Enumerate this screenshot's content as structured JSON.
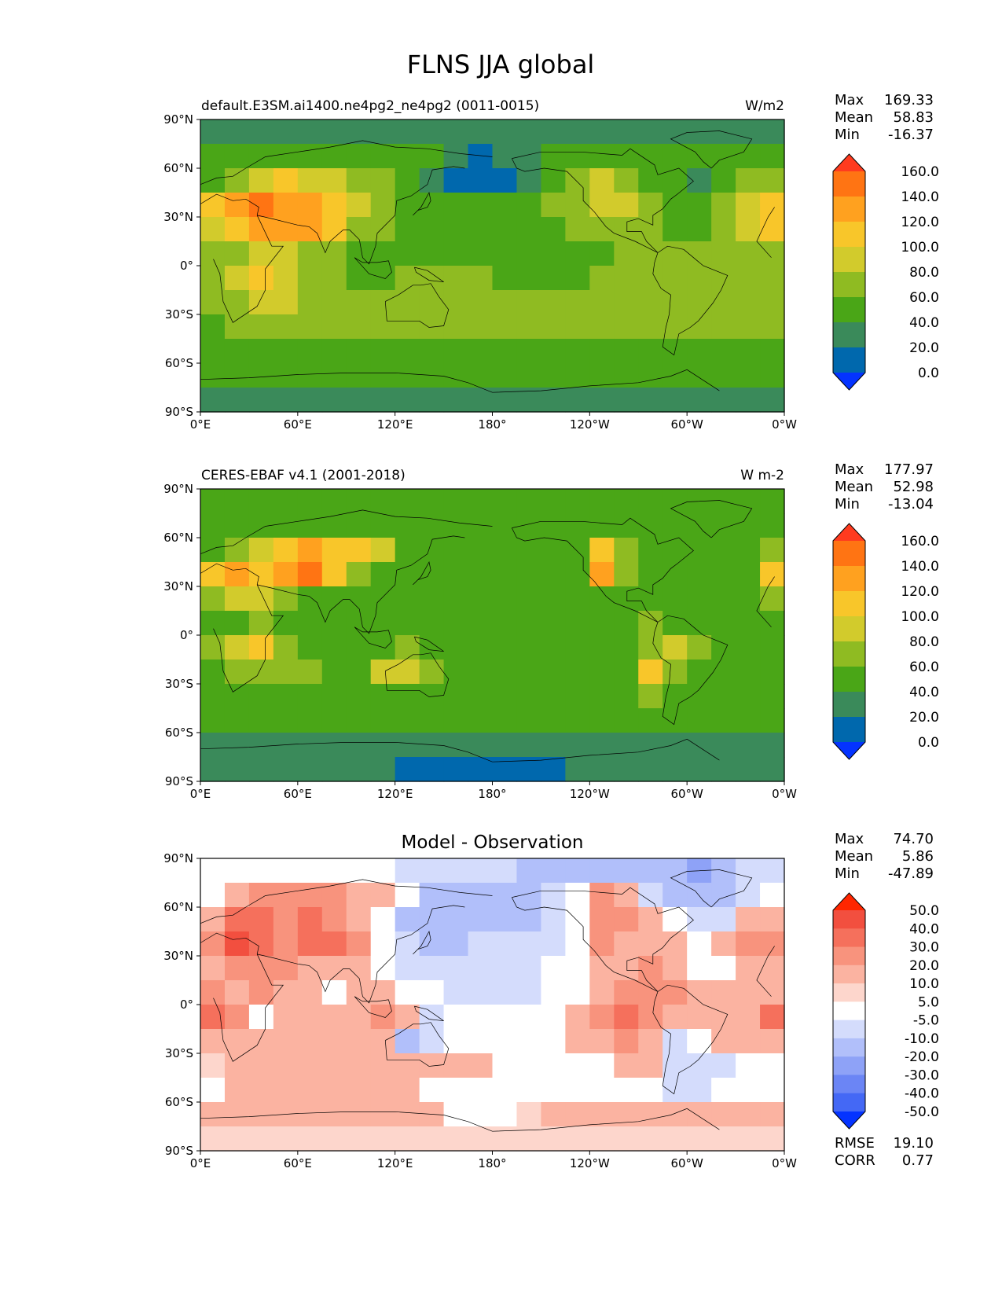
{
  "figure_title": "FLNS JJA global",
  "x_tick_labels": [
    "0°E",
    "60°E",
    "120°E",
    "180°",
    "120°W",
    "60°W",
    "0°W"
  ],
  "y_tick_labels": [
    "90°N",
    "60°N",
    "30°N",
    "0°",
    "30°S",
    "60°S",
    "90°S"
  ],
  "chart_data": [
    {
      "type": "heatmap",
      "name": "model",
      "title_left": "default.E3SM.ai1400.ne4pg2_ne4pg2 (0011-0015)",
      "title_right": "W/m2",
      "title_center": "",
      "stats": [
        {
          "label": "Max",
          "value": "169.33"
        },
        {
          "label": "Mean",
          "value": "58.83"
        },
        {
          "label": "Min",
          "value": "-16.37"
        }
      ],
      "extra_stats": [],
      "colorbar_levels": [
        "160.0",
        "140.0",
        "120.0",
        "100.0",
        "80.0",
        "60.0",
        "40.0",
        "20.0",
        "0.0"
      ],
      "colorbar_colors": [
        "#ff3b1f",
        "#ff7413",
        "#ffa11f",
        "#f8c62a",
        "#d2cb2c",
        "#8fbb22",
        "#4aa617",
        "#3a8a5a",
        "#0068ad",
        "#0433ff"
      ],
      "grid_values": [
        [
          20,
          20,
          20,
          20,
          20,
          20,
          20,
          20,
          20,
          20,
          20,
          20,
          20,
          20,
          20,
          20,
          20,
          20,
          20,
          20,
          20,
          20,
          20,
          20
        ],
        [
          40,
          50,
          40,
          40,
          40,
          40,
          40,
          40,
          40,
          40,
          20,
          10,
          20,
          20,
          40,
          40,
          40,
          50,
          50,
          40,
          40,
          40,
          40,
          40
        ],
        [
          50,
          70,
          90,
          100,
          90,
          80,
          60,
          60,
          40,
          20,
          10,
          10,
          10,
          30,
          40,
          60,
          80,
          70,
          50,
          40,
          30,
          50,
          70,
          60
        ],
        [
          100,
          120,
          150,
          130,
          130,
          110,
          90,
          70,
          50,
          40,
          40,
          40,
          40,
          50,
          60,
          70,
          90,
          80,
          60,
          50,
          50,
          60,
          80,
          110
        ],
        [
          80,
          100,
          130,
          120,
          120,
          100,
          70,
          60,
          50,
          50,
          50,
          50,
          50,
          50,
          50,
          60,
          70,
          70,
          60,
          50,
          50,
          60,
          80,
          100
        ],
        [
          60,
          70,
          90,
          80,
          70,
          60,
          50,
          50,
          50,
          50,
          50,
          50,
          50,
          50,
          50,
          50,
          50,
          60,
          60,
          60,
          60,
          60,
          60,
          60
        ],
        [
          60,
          80,
          100,
          90,
          70,
          60,
          50,
          50,
          60,
          60,
          60,
          60,
          50,
          50,
          50,
          50,
          60,
          60,
          70,
          70,
          70,
          70,
          70,
          70
        ],
        [
          60,
          70,
          80,
          80,
          70,
          60,
          60,
          70,
          70,
          70,
          60,
          60,
          60,
          60,
          60,
          60,
          60,
          60,
          70,
          70,
          70,
          60,
          60,
          60
        ],
        [
          50,
          60,
          60,
          60,
          60,
          60,
          60,
          60,
          60,
          60,
          60,
          60,
          60,
          60,
          60,
          60,
          60,
          60,
          60,
          60,
          60,
          60,
          60,
          60
        ],
        [
          40,
          50,
          50,
          50,
          50,
          50,
          50,
          50,
          50,
          50,
          50,
          50,
          50,
          50,
          50,
          50,
          50,
          50,
          40,
          40,
          40,
          40,
          40,
          40
        ],
        [
          40,
          40,
          40,
          40,
          40,
          40,
          40,
          40,
          40,
          40,
          40,
          40,
          40,
          40,
          40,
          40,
          40,
          40,
          40,
          40,
          40,
          40,
          40,
          40
        ],
        [
          20,
          20,
          20,
          20,
          20,
          20,
          20,
          20,
          20,
          20,
          20,
          20,
          20,
          20,
          20,
          20,
          20,
          20,
          20,
          20,
          20,
          20,
          20,
          20
        ]
      ]
    },
    {
      "type": "heatmap",
      "name": "observation",
      "title_left": "CERES-EBAF v4.1 (2001-2018)",
      "title_right": "W m-2",
      "title_center": "",
      "stats": [
        {
          "label": "Max",
          "value": "177.97"
        },
        {
          "label": "Mean",
          "value": "52.98"
        },
        {
          "label": "Min",
          "value": "-13.04"
        }
      ],
      "extra_stats": [],
      "colorbar_levels": [
        "160.0",
        "140.0",
        "120.0",
        "100.0",
        "80.0",
        "60.0",
        "40.0",
        "20.0",
        "0.0"
      ],
      "colorbar_colors": [
        "#ff3b1f",
        "#ff7413",
        "#ffa11f",
        "#f8c62a",
        "#d2cb2c",
        "#8fbb22",
        "#4aa617",
        "#3a8a5a",
        "#0068ad",
        "#0433ff"
      ],
      "grid_values": [
        [
          40,
          40,
          40,
          40,
          40,
          40,
          40,
          40,
          40,
          40,
          40,
          40,
          40,
          40,
          40,
          40,
          40,
          40,
          40,
          40,
          40,
          40,
          40,
          40
        ],
        [
          40,
          50,
          50,
          50,
          50,
          50,
          50,
          50,
          40,
          40,
          40,
          40,
          40,
          40,
          40,
          40,
          50,
          50,
          50,
          40,
          40,
          40,
          40,
          40
        ],
        [
          50,
          60,
          90,
          100,
          120,
          110,
          100,
          80,
          50,
          40,
          40,
          40,
          40,
          40,
          40,
          50,
          100,
          60,
          50,
          50,
          40,
          40,
          40,
          70
        ],
        [
          100,
          130,
          110,
          130,
          140,
          100,
          60,
          50,
          40,
          40,
          40,
          40,
          40,
          40,
          40,
          40,
          120,
          60,
          40,
          40,
          40,
          40,
          40,
          100
        ],
        [
          60,
          80,
          90,
          60,
          40,
          50,
          40,
          40,
          40,
          40,
          40,
          40,
          40,
          50,
          50,
          40,
          50,
          50,
          50,
          40,
          40,
          40,
          40,
          60
        ],
        [
          50,
          50,
          60,
          50,
          50,
          50,
          50,
          50,
          50,
          50,
          50,
          50,
          50,
          50,
          50,
          50,
          50,
          50,
          60,
          50,
          50,
          50,
          50,
          50
        ],
        [
          60,
          80,
          100,
          60,
          50,
          50,
          50,
          50,
          60,
          50,
          50,
          50,
          50,
          50,
          50,
          50,
          50,
          50,
          70,
          90,
          60,
          50,
          50,
          50
        ],
        [
          50,
          60,
          60,
          60,
          60,
          50,
          50,
          80,
          90,
          60,
          50,
          50,
          50,
          50,
          50,
          50,
          50,
          50,
          110,
          60,
          50,
          50,
          50,
          50
        ],
        [
          50,
          50,
          50,
          50,
          50,
          50,
          50,
          50,
          50,
          50,
          50,
          50,
          50,
          50,
          50,
          50,
          50,
          50,
          70,
          50,
          50,
          50,
          50,
          50
        ],
        [
          40,
          40,
          40,
          40,
          40,
          40,
          40,
          40,
          40,
          40,
          40,
          40,
          40,
          40,
          40,
          40,
          40,
          40,
          40,
          40,
          40,
          40,
          40,
          40
        ],
        [
          20,
          20,
          20,
          20,
          20,
          20,
          20,
          20,
          20,
          20,
          20,
          20,
          20,
          20,
          20,
          20,
          20,
          20,
          20,
          20,
          20,
          20,
          20,
          20
        ],
        [
          20,
          20,
          20,
          20,
          20,
          20,
          20,
          20,
          10,
          10,
          10,
          10,
          10,
          10,
          10,
          20,
          20,
          20,
          20,
          20,
          20,
          20,
          20,
          20
        ]
      ]
    },
    {
      "type": "heatmap",
      "name": "difference",
      "title_left": "",
      "title_right": "",
      "title_center": "Model - Observation",
      "stats": [
        {
          "label": "Max",
          "value": "74.70"
        },
        {
          "label": "Mean",
          "value": "5.86"
        },
        {
          "label": "Min",
          "value": "-47.89"
        }
      ],
      "extra_stats": [
        {
          "label": "RMSE",
          "value": "19.10"
        },
        {
          "label": "CORR",
          "value": "0.77"
        }
      ],
      "colorbar_levels": [
        "50.0",
        "40.0",
        "30.0",
        "20.0",
        "10.0",
        "5.0",
        "-5.0",
        "-10.0",
        "-20.0",
        "-30.0",
        "-40.0",
        "-50.0"
      ],
      "colorbar_colors": [
        "#ff2600",
        "#f24f3f",
        "#f5705c",
        "#f8937d",
        "#fbb3a1",
        "#fdd6cc",
        "#ffffff",
        "#d4dcfc",
        "#b1bffa",
        "#8ea2f7",
        "#6b85f5",
        "#4468f5",
        "#0433ff"
      ],
      "grid_values": [
        [
          -5,
          -5,
          -5,
          -5,
          -5,
          -5,
          -5,
          -5,
          -10,
          -10,
          -10,
          -10,
          -10,
          -20,
          -20,
          -20,
          -20,
          -20,
          -20,
          -20,
          -30,
          -20,
          -10,
          -10
        ],
        [
          0,
          10,
          20,
          20,
          20,
          20,
          10,
          10,
          0,
          -20,
          -20,
          -20,
          -20,
          -20,
          -10,
          0,
          20,
          10,
          -10,
          -20,
          -20,
          -20,
          -10,
          0
        ],
        [
          10,
          30,
          30,
          20,
          30,
          20,
          10,
          0,
          -20,
          -20,
          -20,
          -20,
          -20,
          -20,
          -10,
          0,
          20,
          20,
          10,
          0,
          -10,
          -10,
          10,
          10
        ],
        [
          20,
          40,
          30,
          20,
          30,
          30,
          20,
          0,
          -10,
          -20,
          -20,
          -10,
          -10,
          -10,
          -10,
          0,
          20,
          10,
          10,
          10,
          0,
          10,
          20,
          20
        ],
        [
          10,
          20,
          20,
          20,
          10,
          10,
          10,
          0,
          -10,
          -10,
          -10,
          -10,
          -10,
          -10,
          -5,
          0,
          10,
          10,
          20,
          10,
          0,
          0,
          10,
          10
        ],
        [
          20,
          10,
          20,
          10,
          10,
          0,
          10,
          10,
          0,
          -5,
          -10,
          -10,
          -10,
          -10,
          -5,
          0,
          10,
          20,
          20,
          20,
          10,
          10,
          10,
          10
        ],
        [
          30,
          20,
          0,
          10,
          10,
          10,
          10,
          20,
          10,
          -10,
          0,
          0,
          0,
          0,
          0,
          10,
          20,
          30,
          20,
          10,
          10,
          10,
          10,
          30
        ],
        [
          10,
          10,
          10,
          10,
          10,
          10,
          10,
          10,
          -20,
          -10,
          0,
          0,
          0,
          0,
          0,
          10,
          10,
          20,
          10,
          -10,
          0,
          10,
          10,
          10
        ],
        [
          5,
          10,
          10,
          10,
          10,
          10,
          10,
          10,
          10,
          10,
          10,
          10,
          0,
          0,
          0,
          0,
          0,
          10,
          10,
          -10,
          -10,
          -10,
          -5,
          0
        ],
        [
          0,
          10,
          10,
          10,
          10,
          10,
          10,
          10,
          10,
          0,
          0,
          0,
          0,
          0,
          0,
          0,
          0,
          0,
          0,
          -10,
          -10,
          0,
          0,
          0
        ],
        [
          10,
          10,
          10,
          10,
          10,
          10,
          10,
          10,
          10,
          10,
          -5,
          -5,
          0,
          5,
          10,
          10,
          10,
          10,
          10,
          10,
          10,
          10,
          10,
          10
        ],
        [
          5,
          5,
          5,
          5,
          5,
          5,
          5,
          5,
          5,
          5,
          5,
          5,
          5,
          5,
          5,
          5,
          5,
          5,
          5,
          5,
          5,
          5,
          5,
          5
        ]
      ]
    }
  ]
}
